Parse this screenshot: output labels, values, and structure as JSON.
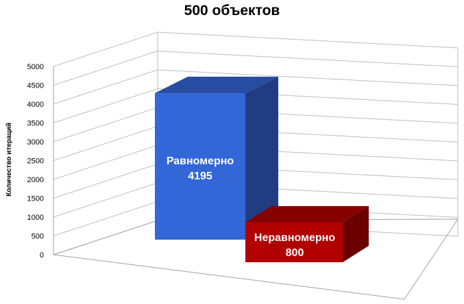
{
  "chart_data": {
    "type": "bar",
    "title": "500 объектов",
    "ylabel": "Количество  итераций",
    "xlabel": "",
    "ylim": [
      0,
      5000
    ],
    "yticks": [
      "0",
      "500",
      "1000",
      "1500",
      "2000",
      "2500",
      "3000",
      "3500",
      "4000",
      "4500",
      "5000"
    ],
    "grid": true,
    "three_d": true,
    "categories": [
      "Равномерно",
      "Неравномерно"
    ],
    "values": [
      4195,
      800
    ],
    "value_labels": [
      "4195",
      "800"
    ],
    "colors": [
      "#3366d6",
      "#b20000"
    ]
  }
}
